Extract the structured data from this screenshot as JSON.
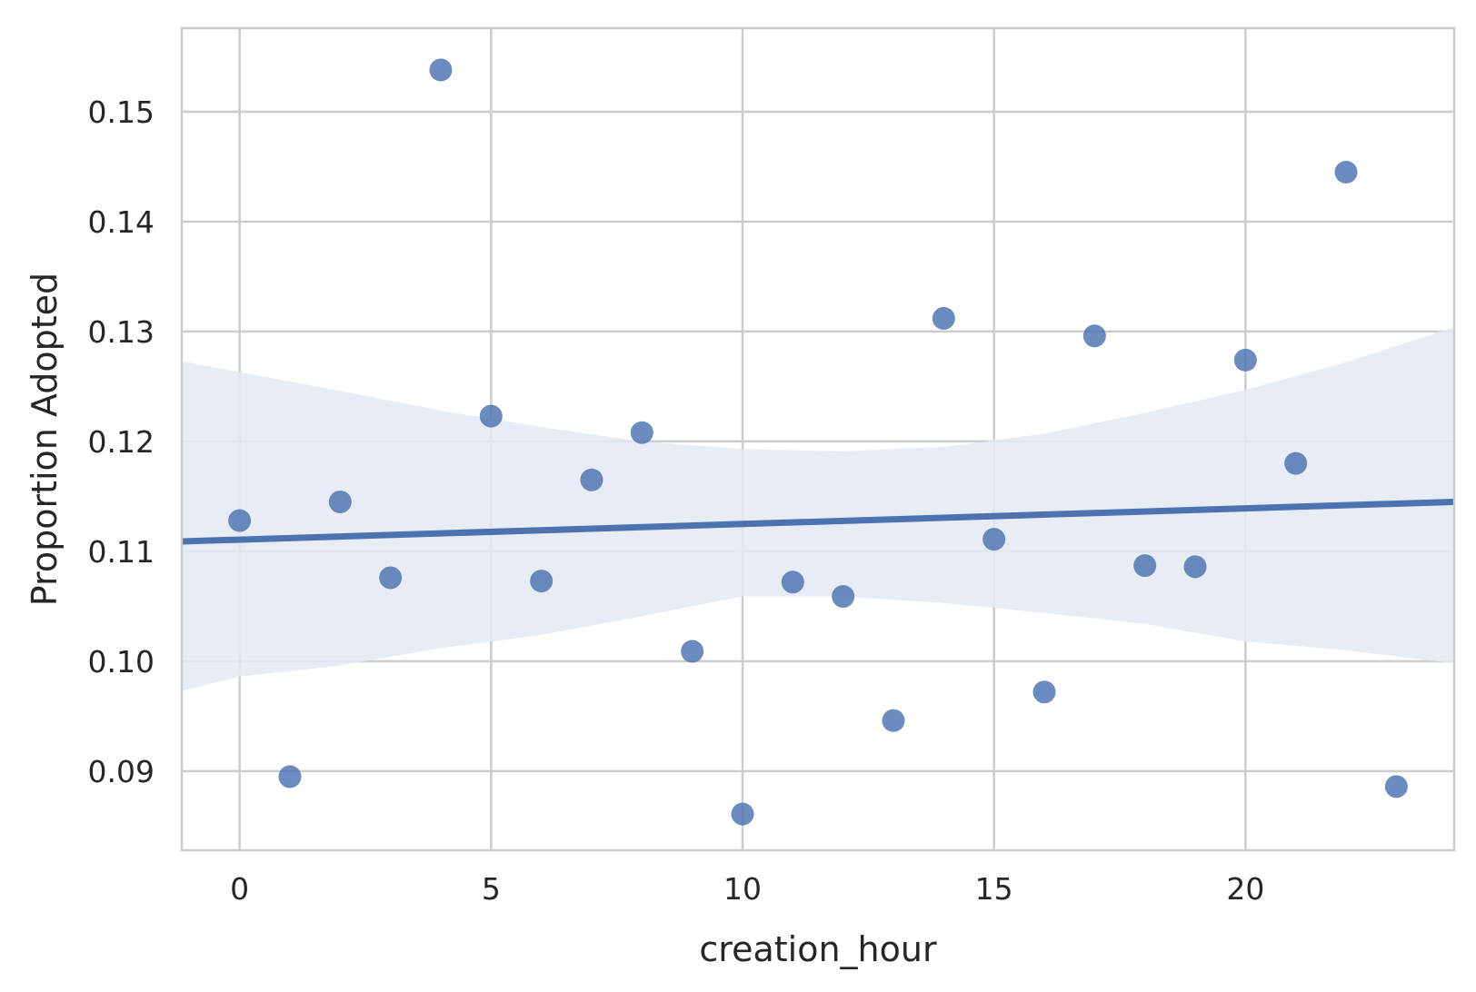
{
  "chart_data": {
    "type": "scatter",
    "title": "",
    "xlabel": "creation_hour",
    "ylabel": "Proportion Adopted",
    "xlim": [
      -1.15,
      24.15
    ],
    "ylim": [
      0.0828,
      0.1576
    ],
    "x_ticks": [
      0,
      5,
      10,
      15,
      20
    ],
    "y_ticks": [
      0.09,
      0.1,
      0.11,
      0.12,
      0.13,
      0.14,
      0.15
    ],
    "x_tick_labels": [
      "0",
      "5",
      "10",
      "15",
      "20"
    ],
    "y_tick_labels": [
      "0.09",
      "0.10",
      "0.11",
      "0.12",
      "0.13",
      "0.14",
      "0.15"
    ],
    "grid": true,
    "points": {
      "x": [
        0,
        1,
        2,
        3,
        4,
        5,
        6,
        7,
        8,
        9,
        10,
        11,
        12,
        13,
        14,
        15,
        16,
        17,
        18,
        19,
        20,
        21,
        22,
        23
      ],
      "y": [
        0.1128,
        0.0895,
        0.1145,
        0.1076,
        0.1538,
        0.1223,
        0.1073,
        0.1165,
        0.1208,
        0.1009,
        0.0861,
        0.1072,
        0.1059,
        0.0946,
        0.1312,
        0.1111,
        0.0972,
        0.1296,
        0.1087,
        0.1086,
        0.1274,
        0.118,
        0.1445,
        0.0886
      ]
    },
    "regression_line": {
      "x": [
        -1.15,
        24.15
      ],
      "y": [
        0.1109,
        0.1145
      ]
    },
    "confidence_band": {
      "x": [
        -1.15,
        0,
        2,
        4,
        6,
        8,
        10,
        12,
        14,
        16,
        18,
        20,
        22,
        24.15
      ],
      "upper": [
        0.1273,
        0.1263,
        0.1246,
        0.1228,
        0.1213,
        0.12,
        0.1193,
        0.1191,
        0.1195,
        0.1207,
        0.1226,
        0.1247,
        0.1272,
        0.1304
      ],
      "lower": [
        0.0973,
        0.0986,
        0.0996,
        0.1012,
        0.1024,
        0.1041,
        0.1059,
        0.1059,
        0.1053,
        0.1044,
        0.1034,
        0.1018,
        0.101,
        0.0998
      ]
    },
    "colors": {
      "point": "#4c72b0",
      "line": "#4c72b0",
      "band": "#e3e9f3",
      "grid": "#cccccc",
      "spine": "#cccccc",
      "text": "#262626"
    }
  }
}
